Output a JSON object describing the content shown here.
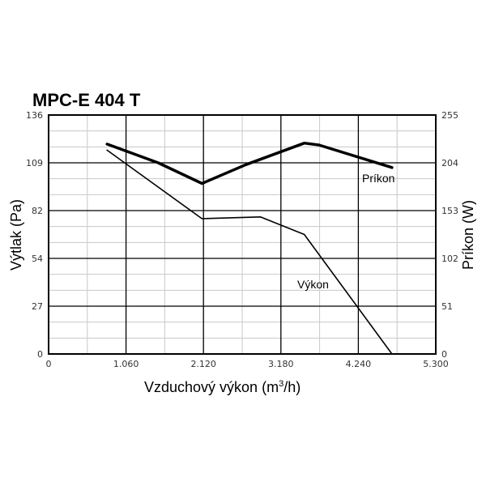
{
  "chart_data": {
    "type": "line",
    "title": "MPC-E 404 T",
    "xlabel": "Vzduchový výkon (m³/h)",
    "ylabel_left": "Výtlak (Pa)",
    "ylabel_right": "Príkon (W)",
    "xlim": [
      0,
      5300
    ],
    "ylim_left": [
      0,
      136
    ],
    "ylim_right": [
      0,
      255
    ],
    "x_ticks": [
      "0",
      "1.060",
      "2.120",
      "3.180",
      "4.240",
      "5.300"
    ],
    "y_left_ticks": [
      "0",
      "27",
      "54",
      "82",
      "109",
      "136"
    ],
    "y_right_ticks": [
      "0",
      "51",
      "102",
      "153",
      "204",
      "255"
    ],
    "grid": true,
    "series": [
      {
        "name": "Výkon",
        "axis": "left",
        "x": [
          800,
          2100,
          2900,
          3500,
          4700
        ],
        "y": [
          116,
          77,
          78,
          68,
          0
        ]
      },
      {
        "name": "Príkon",
        "axis": "right",
        "x": [
          800,
          1500,
          2100,
          2700,
          3500,
          3700,
          4700
        ],
        "y": [
          224,
          204,
          182,
          202,
          225,
          223,
          199
        ]
      }
    ]
  }
}
